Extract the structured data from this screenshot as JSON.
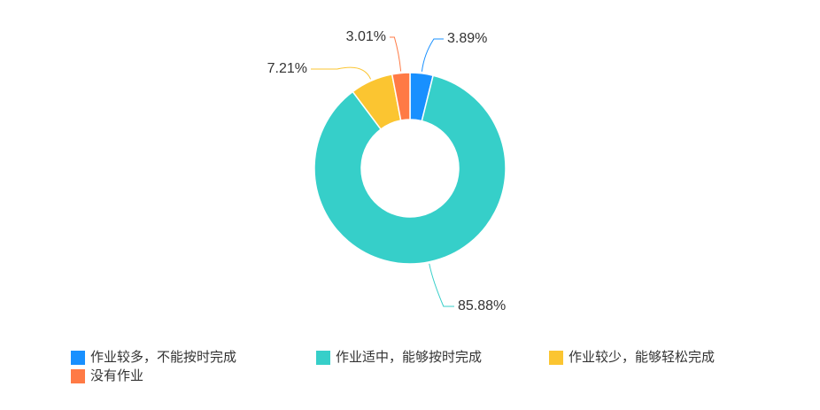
{
  "chart_data": {
    "type": "donut",
    "categories": [
      "作业较多，不能按时完成",
      "作业适中，能够按时完成",
      "作业较少，能够轻松完成",
      "没有作业"
    ],
    "values": [
      3.89,
      85.88,
      7.21,
      3.01
    ],
    "value_labels": [
      "3.89%",
      "85.88%",
      "7.21%",
      "3.01%"
    ],
    "colors": [
      "#1890ff",
      "#36cfc9",
      "#fbc531",
      "#ff7a45"
    ]
  }
}
